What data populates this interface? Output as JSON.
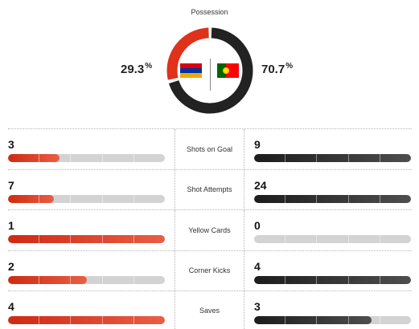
{
  "possession": {
    "title": "Possession",
    "home_pct": "29.3",
    "away_pct": "70.7",
    "unit": "%",
    "home_fraction": 0.293,
    "away_fraction": 0.707,
    "home_color": "#e0311a",
    "away_color": "#222222"
  },
  "teams": {
    "home_flag": "armenia-flag",
    "away_flag": "portugal-flag"
  },
  "stats": [
    {
      "label": "Shots on Goal",
      "home": "3",
      "away": "9",
      "home_fill": 0.33,
      "away_fill": 1.0
    },
    {
      "label": "Shot Attempts",
      "home": "7",
      "away": "24",
      "home_fill": 0.29,
      "away_fill": 1.0
    },
    {
      "label": "Yellow Cards",
      "home": "1",
      "away": "0",
      "home_fill": 1.0,
      "away_fill": 0.0
    },
    {
      "label": "Corner Kicks",
      "home": "2",
      "away": "4",
      "home_fill": 0.5,
      "away_fill": 1.0
    },
    {
      "label": "Saves",
      "home": "4",
      "away": "3",
      "home_fill": 1.0,
      "away_fill": 0.75
    }
  ]
}
